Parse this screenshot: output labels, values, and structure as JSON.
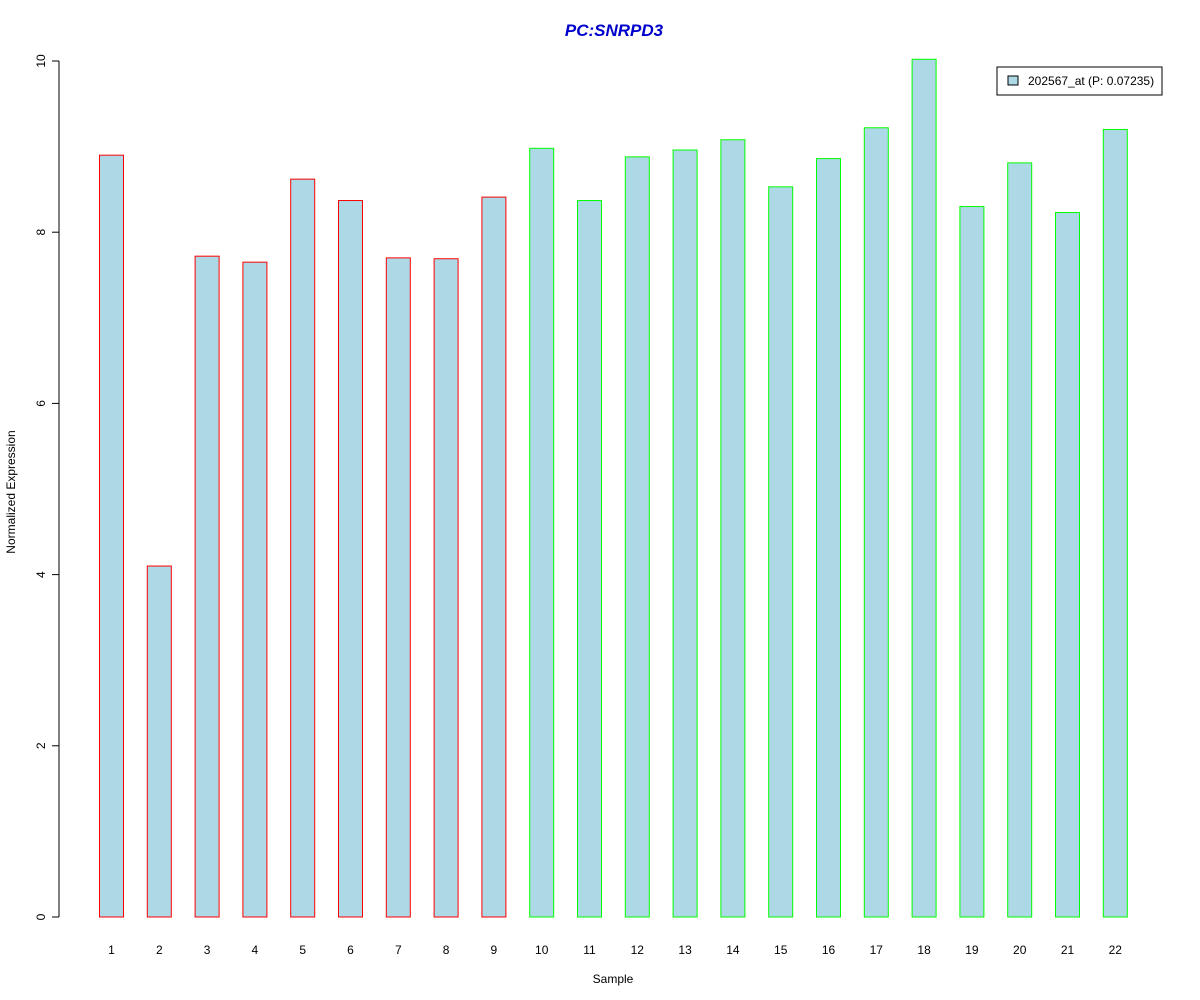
{
  "chart_data": {
    "type": "bar",
    "title": "PC:SNRPD3",
    "xlabel": "Sample",
    "ylabel": "Normalized Expression",
    "ylim": [
      0,
      10
    ],
    "yticks": [
      0,
      2,
      4,
      6,
      8,
      10
    ],
    "categories": [
      "1",
      "2",
      "3",
      "4",
      "5",
      "6",
      "7",
      "8",
      "9",
      "10",
      "11",
      "12",
      "13",
      "14",
      "15",
      "16",
      "17",
      "18",
      "19",
      "20",
      "21",
      "22"
    ],
    "series": [
      {
        "name": "202567_at (P: 0.07235)",
        "values": [
          8.9,
          4.1,
          7.72,
          7.65,
          8.62,
          8.37,
          7.7,
          7.69,
          8.41,
          8.98,
          8.37,
          8.88,
          8.96,
          9.08,
          8.53,
          8.86,
          9.22,
          10.02,
          8.3,
          8.81,
          8.23,
          9.2
        ]
      }
    ],
    "group_colors": [
      "#ff0000",
      "#ff0000",
      "#ff0000",
      "#ff0000",
      "#ff0000",
      "#ff0000",
      "#ff0000",
      "#ff0000",
      "#ff0000",
      "#00ff00",
      "#00ff00",
      "#00ff00",
      "#00ff00",
      "#00ff00",
      "#00ff00",
      "#00ff00",
      "#00ff00",
      "#00ff00",
      "#00ff00",
      "#00ff00",
      "#00ff00",
      "#00ff00"
    ],
    "fill_color": "#add8e6",
    "title_color": "#0000cc",
    "legend_position": "top-right",
    "grid": false
  }
}
